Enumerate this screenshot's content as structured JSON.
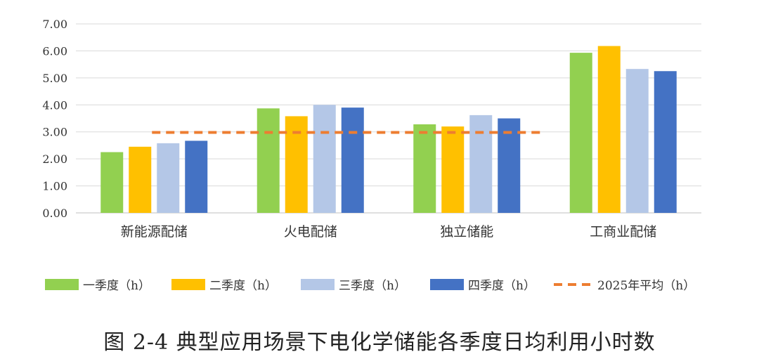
{
  "caption": "图 2-4 典型应用场景下电化学储能各季度日均利用小时数",
  "chart_data": {
    "type": "bar",
    "title": "",
    "xlabel": "",
    "ylabel": "",
    "ylim": [
      0,
      7
    ],
    "yticks": [
      "0.00",
      "1.00",
      "2.00",
      "3.00",
      "4.00",
      "5.00",
      "6.00",
      "7.00"
    ],
    "grid": true,
    "legend_position": "bottom",
    "categories": [
      "新能源配储",
      "火电配储",
      "独立储能",
      "工商业配储"
    ],
    "series": [
      {
        "name": "一季度（h）",
        "color": "#92D050",
        "values": [
          2.25,
          3.87,
          3.28,
          5.93
        ]
      },
      {
        "name": "二季度（h）",
        "color": "#FFC000",
        "values": [
          2.45,
          3.58,
          3.2,
          6.18
        ]
      },
      {
        "name": "三季度（h）",
        "color": "#B4C7E7",
        "values": [
          2.58,
          4.0,
          3.62,
          5.33
        ]
      },
      {
        "name": "四季度（h）",
        "color": "#4472C4",
        "values": [
          2.67,
          3.9,
          3.5,
          5.25
        ]
      }
    ],
    "reference_line": {
      "name": "2025年平均（h）",
      "color": "#ED7D31",
      "value": 2.98,
      "style": "dashed"
    }
  }
}
